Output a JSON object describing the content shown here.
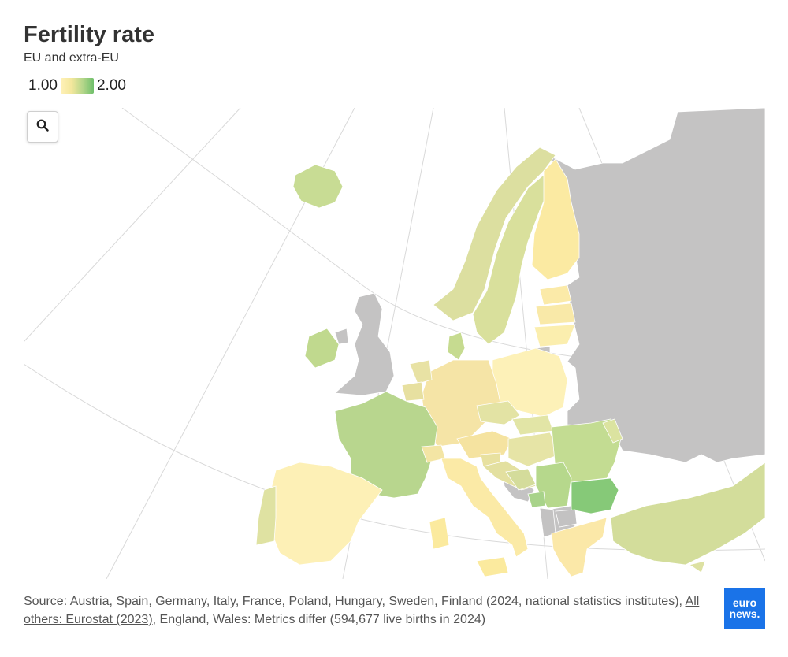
{
  "header": {
    "title": "Fertility rate",
    "subtitle": "EU and extra-EU"
  },
  "legend": {
    "min_label": "1.00",
    "max_label": "2.00",
    "color_min": "#fff1b8",
    "color_max": "#6fbf6b"
  },
  "zoom_control": {
    "icon": "search-icon"
  },
  "colors": {
    "no_data": "#c4c3c3",
    "graticule": "#d9d9d9",
    "background": "#ffffff"
  },
  "footer": {
    "source_prefix": "Source: Austria, Spain, Germany, Italy, France, Poland, Hungary, Sweden, Finland (2024, national statistics institutes), ",
    "source_link": "All others: Eurostat (2023)",
    "source_suffix": ", England, Wales: Metrics differ (594,677 live births in 2024)"
  },
  "logo": {
    "line1": "euro",
    "line2": "news."
  }
}
